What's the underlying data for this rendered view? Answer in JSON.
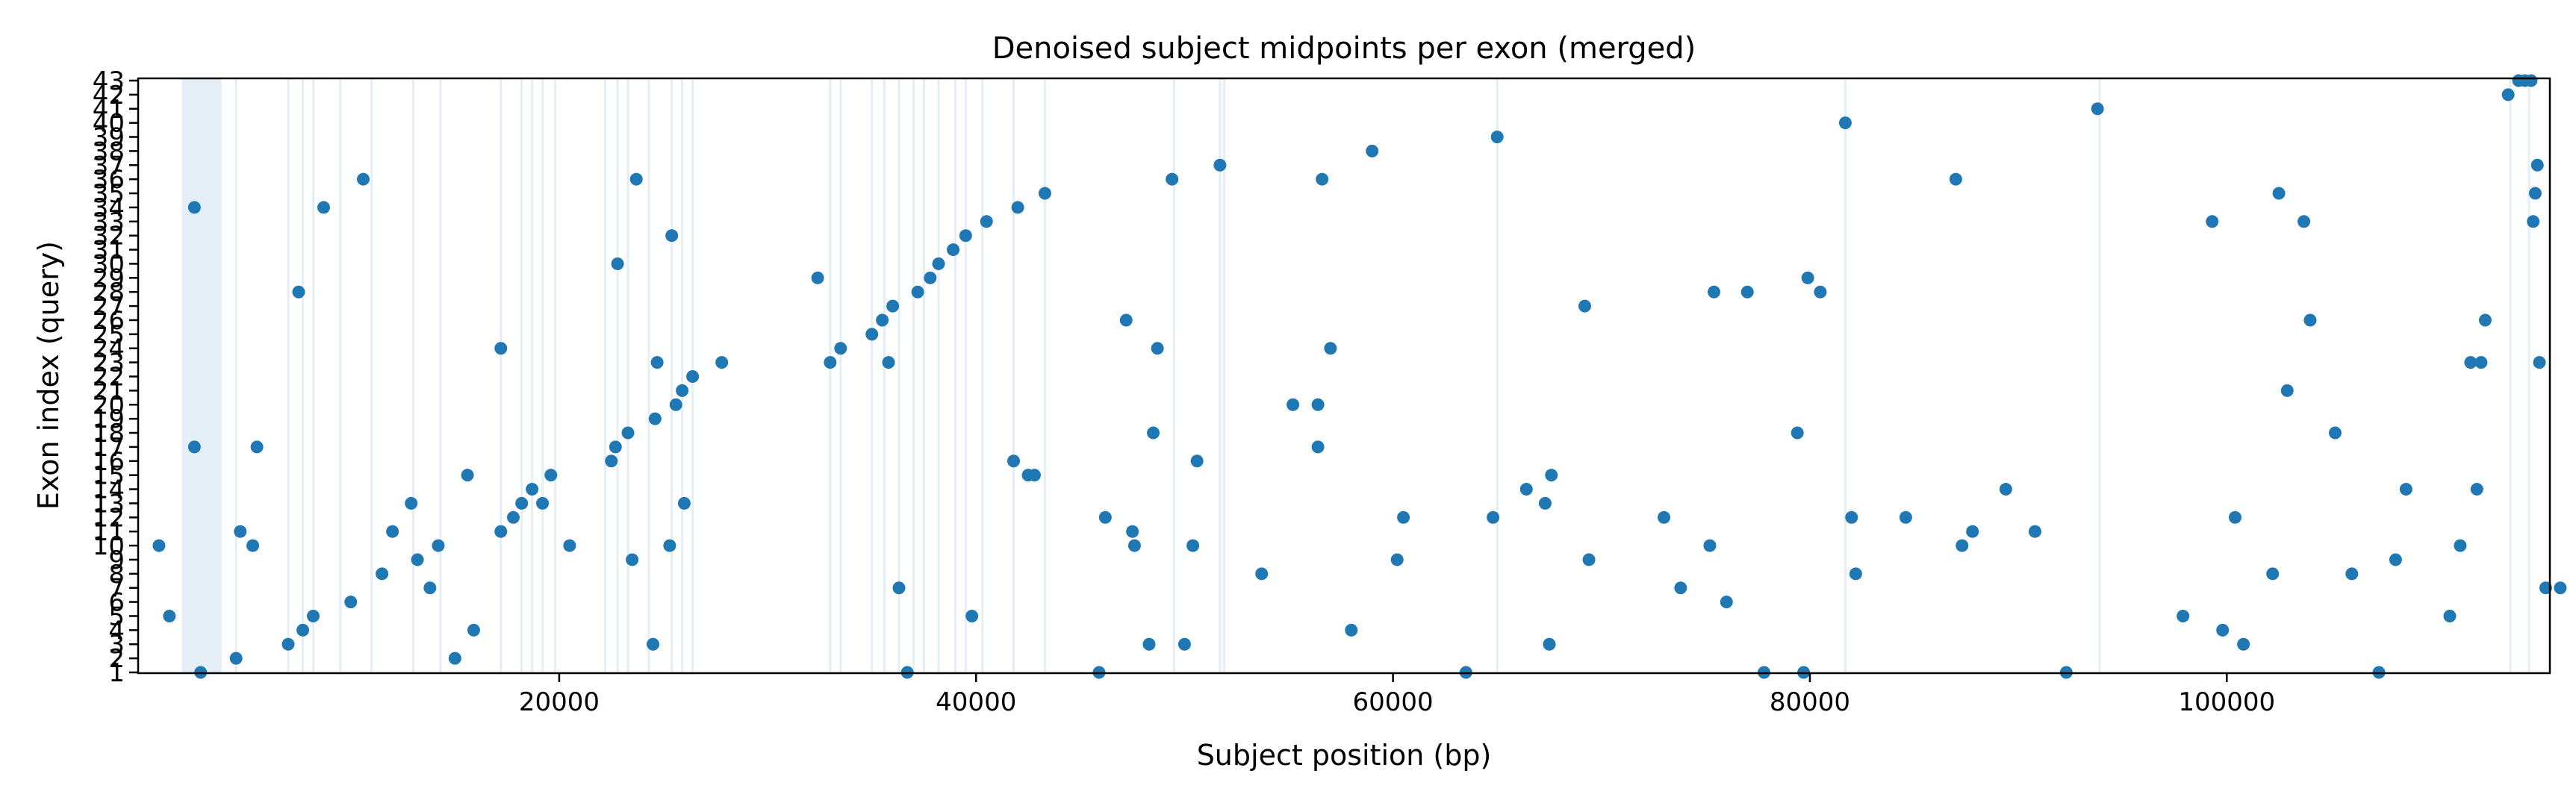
{
  "chart_data": {
    "type": "scatter",
    "title": "Denoised subject midpoints per exon (merged)",
    "xlabel": "Subject position (bp)",
    "ylabel": "Exon index (query)",
    "xlim": [
      -200,
      115500
    ],
    "ylim": [
      1,
      43
    ],
    "x_ticks": [
      20000,
      40000,
      60000,
      80000,
      100000
    ],
    "x_tick_labels": [
      "20000",
      "40000",
      "60000",
      "80000",
      "100000"
    ],
    "y_ticks": [
      1,
      2,
      3,
      4,
      5,
      6,
      7,
      8,
      9,
      10,
      11,
      12,
      13,
      14,
      15,
      16,
      17,
      18,
      19,
      20,
      21,
      22,
      23,
      24,
      25,
      26,
      27,
      28,
      29,
      30,
      31,
      32,
      33,
      34,
      35,
      36,
      37,
      38,
      39,
      40,
      41,
      42,
      43
    ],
    "y_tick_labels": [
      "1",
      "2",
      "3",
      "4",
      "5",
      "6",
      "7",
      "8",
      "9",
      "10",
      "11",
      "12",
      "13",
      "14",
      "15",
      "16",
      "17",
      "18",
      "19",
      "20",
      "21",
      "22",
      "23",
      "24",
      "25",
      "26",
      "27",
      "28",
      "29",
      "30",
      "31",
      "32",
      "33",
      "34",
      "35",
      "36",
      "37",
      "38",
      "39",
      "40",
      "41",
      "42",
      "43"
    ],
    "grid": false,
    "point_color": "#1f77b4",
    "band_color": "#e3eef7",
    "bands": [
      [
        1900,
        3800
      ]
    ],
    "vlines": [
      4500,
      7000,
      7700,
      8200,
      9500,
      11000,
      13000,
      14300,
      17200,
      18200,
      18700,
      19200,
      19800,
      22200,
      22800,
      23300,
      24300,
      25400,
      25900,
      26400,
      33000,
      33500,
      35000,
      35600,
      36300,
      37000,
      37500,
      38200,
      39000,
      39500,
      40300,
      41800,
      43300,
      49500,
      51700,
      51900,
      65000,
      81700,
      93900,
      113600,
      114500
    ],
    "points": [
      [
        800,
        10
      ],
      [
        1300,
        5
      ],
      [
        4500,
        2
      ],
      [
        4700,
        11
      ],
      [
        5300,
        10
      ],
      [
        7000,
        3
      ],
      [
        7700,
        4
      ],
      [
        8200,
        5
      ],
      [
        10000,
        6
      ],
      [
        11500,
        8
      ],
      [
        12000,
        11
      ],
      [
        12900,
        13
      ],
      [
        13200,
        9
      ],
      [
        13800,
        7
      ],
      [
        14200,
        10
      ],
      [
        15000,
        2
      ],
      [
        15900,
        4
      ],
      [
        17200,
        11
      ],
      [
        17800,
        12
      ],
      [
        18200,
        13
      ],
      [
        18700,
        14
      ],
      [
        19200,
        13
      ],
      [
        19600,
        15
      ],
      [
        20500,
        10
      ],
      [
        2800,
        1
      ],
      [
        2500,
        17
      ],
      [
        2500,
        34
      ],
      [
        5500,
        17
      ],
      [
        7500,
        28
      ],
      [
        8700,
        34
      ],
      [
        10600,
        36
      ],
      [
        15600,
        15
      ],
      [
        17200,
        24
      ],
      [
        22500,
        16
      ],
      [
        22700,
        17
      ],
      [
        22800,
        30
      ],
      [
        23300,
        18
      ],
      [
        23500,
        9
      ],
      [
        23700,
        36
      ],
      [
        24500,
        3
      ],
      [
        24600,
        19
      ],
      [
        24700,
        23
      ],
      [
        25300,
        10
      ],
      [
        25400,
        32
      ],
      [
        25600,
        20
      ],
      [
        25900,
        21
      ],
      [
        26000,
        13
      ],
      [
        26400,
        22
      ],
      [
        27800,
        23
      ],
      [
        32400,
        29
      ],
      [
        33000,
        23
      ],
      [
        33500,
        24
      ],
      [
        35000,
        25
      ],
      [
        35500,
        26
      ],
      [
        35800,
        23
      ],
      [
        36000,
        27
      ],
      [
        36300,
        7
      ],
      [
        36700,
        1
      ],
      [
        37200,
        28
      ],
      [
        37800,
        29
      ],
      [
        38200,
        30
      ],
      [
        38900,
        31
      ],
      [
        39500,
        32
      ],
      [
        39800,
        5
      ],
      [
        40500,
        33
      ],
      [
        41800,
        16
      ],
      [
        42000,
        34
      ],
      [
        42500,
        15
      ],
      [
        42800,
        15
      ],
      [
        43300,
        35
      ],
      [
        45900,
        1
      ],
      [
        46200,
        12
      ],
      [
        47200,
        26
      ],
      [
        47500,
        11
      ],
      [
        47600,
        10
      ],
      [
        48300,
        3
      ],
      [
        48500,
        18
      ],
      [
        48700,
        24
      ],
      [
        49400,
        36
      ],
      [
        50000,
        3
      ],
      [
        50400,
        10
      ],
      [
        50600,
        16
      ],
      [
        51700,
        37
      ],
      [
        53700,
        8
      ],
      [
        55200,
        20
      ],
      [
        56400,
        17
      ],
      [
        56400,
        20
      ],
      [
        56600,
        36
      ],
      [
        57000,
        24
      ],
      [
        58000,
        4
      ],
      [
        59000,
        38
      ],
      [
        60200,
        9
      ],
      [
        60500,
        12
      ],
      [
        63500,
        1
      ],
      [
        64800,
        12
      ],
      [
        65000,
        39
      ],
      [
        66400,
        14
      ],
      [
        67300,
        13
      ],
      [
        67500,
        3
      ],
      [
        67600,
        15
      ],
      [
        69200,
        27
      ],
      [
        69400,
        9
      ],
      [
        73000,
        12
      ],
      [
        73800,
        7
      ],
      [
        75200,
        10
      ],
      [
        75400,
        28
      ],
      [
        76000,
        6
      ],
      [
        77000,
        28
      ],
      [
        77800,
        1
      ],
      [
        79400,
        18
      ],
      [
        79700,
        1
      ],
      [
        79900,
        29
      ],
      [
        80500,
        28
      ],
      [
        81700,
        40
      ],
      [
        82000,
        12
      ],
      [
        82200,
        8
      ],
      [
        84600,
        12
      ],
      [
        87000,
        36
      ],
      [
        87300,
        10
      ],
      [
        87800,
        11
      ],
      [
        89400,
        14
      ],
      [
        90800,
        11
      ],
      [
        92300,
        1
      ],
      [
        93800,
        41
      ],
      [
        97900,
        5
      ],
      [
        99300,
        33
      ],
      [
        99800,
        4
      ],
      [
        100400,
        12
      ],
      [
        100800,
        3
      ],
      [
        102200,
        8
      ],
      [
        102500,
        35
      ],
      [
        102900,
        21
      ],
      [
        103700,
        33
      ],
      [
        104000,
        26
      ],
      [
        105200,
        18
      ],
      [
        106000,
        8
      ],
      [
        107300,
        1
      ],
      [
        108100,
        9
      ],
      [
        108600,
        14
      ],
      [
        110700,
        5
      ],
      [
        111200,
        10
      ],
      [
        111700,
        23
      ],
      [
        112000,
        14
      ],
      [
        112200,
        23
      ],
      [
        112400,
        26
      ],
      [
        113500,
        42
      ],
      [
        114000,
        43
      ],
      [
        114300,
        43
      ],
      [
        114600,
        43
      ],
      [
        114700,
        33
      ],
      [
        114800,
        35
      ],
      [
        114900,
        37
      ],
      [
        115000,
        23
      ],
      [
        115300,
        7
      ],
      [
        116000,
        7
      ]
    ]
  }
}
